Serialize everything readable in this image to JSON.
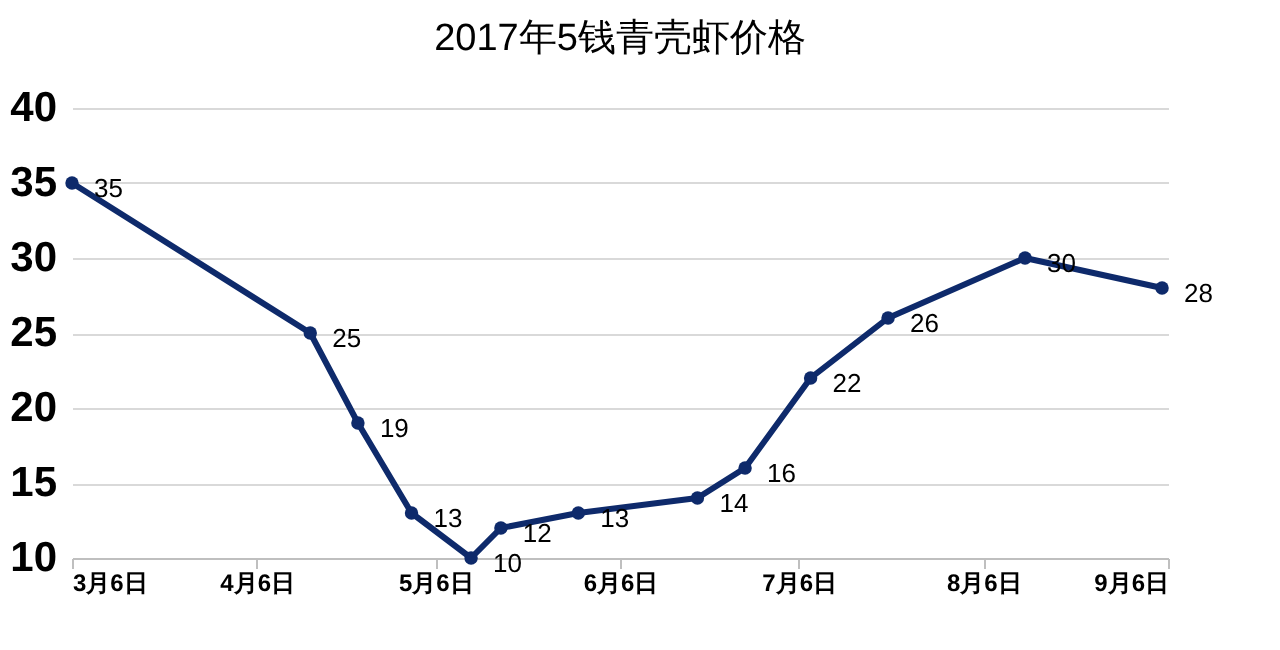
{
  "chart_data": {
    "type": "line",
    "title": "2017年5钱青壳虾价格",
    "x": [
      "2017-03-06",
      "2017-04-15",
      "2017-04-23",
      "2017-05-02",
      "2017-05-12",
      "2017-05-17",
      "2017-05-30",
      "2017-06-19",
      "2017-06-27",
      "2017-07-08",
      "2017-07-21",
      "2017-08-13",
      "2017-09-05"
    ],
    "series": [
      {
        "color": "#0e2a6b",
        "values": [
          35,
          25,
          19,
          13,
          10,
          12,
          13,
          14,
          16,
          22,
          26,
          30,
          28
        ]
      }
    ],
    "xlim": [
      "2017-03-06",
      "2017-09-06"
    ],
    "xticks": [
      {
        "value": "2017-03-06",
        "label": "3月6日"
      },
      {
        "value": "2017-04-06",
        "label": "4月6日"
      },
      {
        "value": "2017-05-06",
        "label": "5月6日"
      },
      {
        "value": "2017-06-06",
        "label": "6月6日"
      },
      {
        "value": "2017-07-06",
        "label": "7月6日"
      },
      {
        "value": "2017-08-06",
        "label": "8月6日"
      },
      {
        "value": "2017-09-06",
        "label": "9月6日"
      }
    ],
    "ylim": [
      10,
      40
    ],
    "yticks": [
      10,
      15,
      20,
      25,
      30,
      35,
      40
    ],
    "grid": "y",
    "marker": "circle",
    "line_style": "solid",
    "data_labels": true,
    "legend": false
  }
}
